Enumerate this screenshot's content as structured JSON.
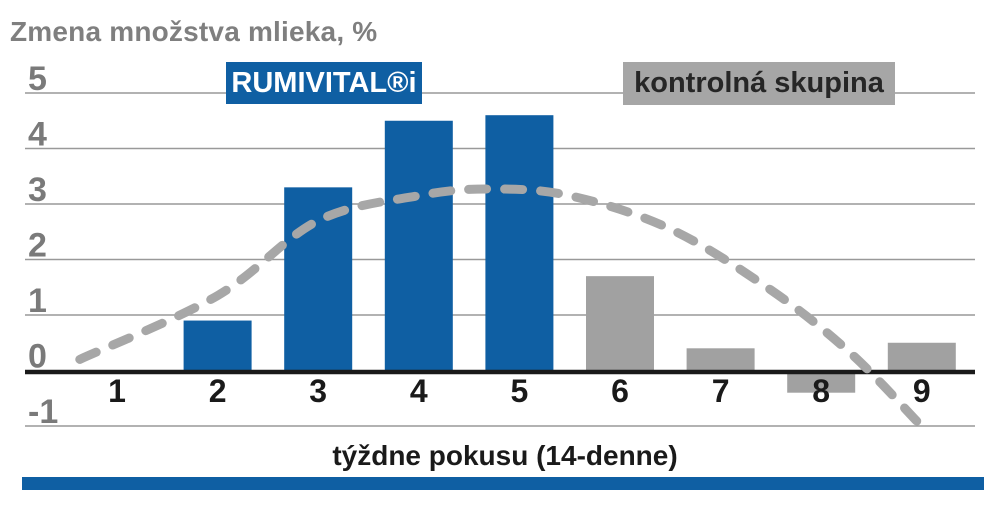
{
  "chart": {
    "title": "Zmena množstva mlieka, %",
    "xlabel": "týždne pokusu (14-denne)",
    "accent_color": "#0f5fa3",
    "legend": [
      {
        "label": "RUMIVITAL®i",
        "color": "#0f5fa3",
        "text_color": "#ffffff"
      },
      {
        "label": "kontrolná skupina",
        "color": "#a6a6a6",
        "text_color": "#262626"
      }
    ]
  },
  "chart_data": {
    "type": "bar",
    "title": "Zmena množstva mlieka, %",
    "xlabel": "týždne pokusu (14-denne)",
    "ylabel": "",
    "categories": [
      1,
      2,
      3,
      4,
      5,
      6,
      7,
      8,
      9
    ],
    "xticks": [
      "1",
      "2",
      "3",
      "4",
      "5",
      "6",
      "7",
      "8",
      "9"
    ],
    "yticks": [
      5,
      4,
      3,
      2,
      1,
      0,
      -1
    ],
    "ylim": [
      -1,
      5
    ],
    "grid": true,
    "legend_position": "top-inside",
    "series": [
      {
        "name": "RUMIVITAL®i",
        "color": "#0f5fa3",
        "values": [
          null,
          0.9,
          3.3,
          4.5,
          4.6,
          null,
          null,
          null,
          null
        ]
      },
      {
        "name": "kontrolná skupina",
        "color": "#a1a1a1",
        "values": [
          null,
          null,
          null,
          null,
          null,
          1.7,
          0.4,
          -0.4,
          0.5
        ]
      }
    ],
    "trend_curve": {
      "style": "dashed",
      "color": "#a7a7a7",
      "points": [
        [
          0.63,
          0.2
        ],
        [
          2,
          1.35
        ],
        [
          3,
          2.7
        ],
        [
          4,
          3.15
        ],
        [
          4.7,
          3.27
        ],
        [
          5.5,
          3.15
        ],
        [
          6.5,
          2.55
        ],
        [
          7.5,
          1.45
        ],
        [
          8.3,
          0.3
        ],
        [
          8.97,
          -0.95
        ]
      ]
    }
  }
}
